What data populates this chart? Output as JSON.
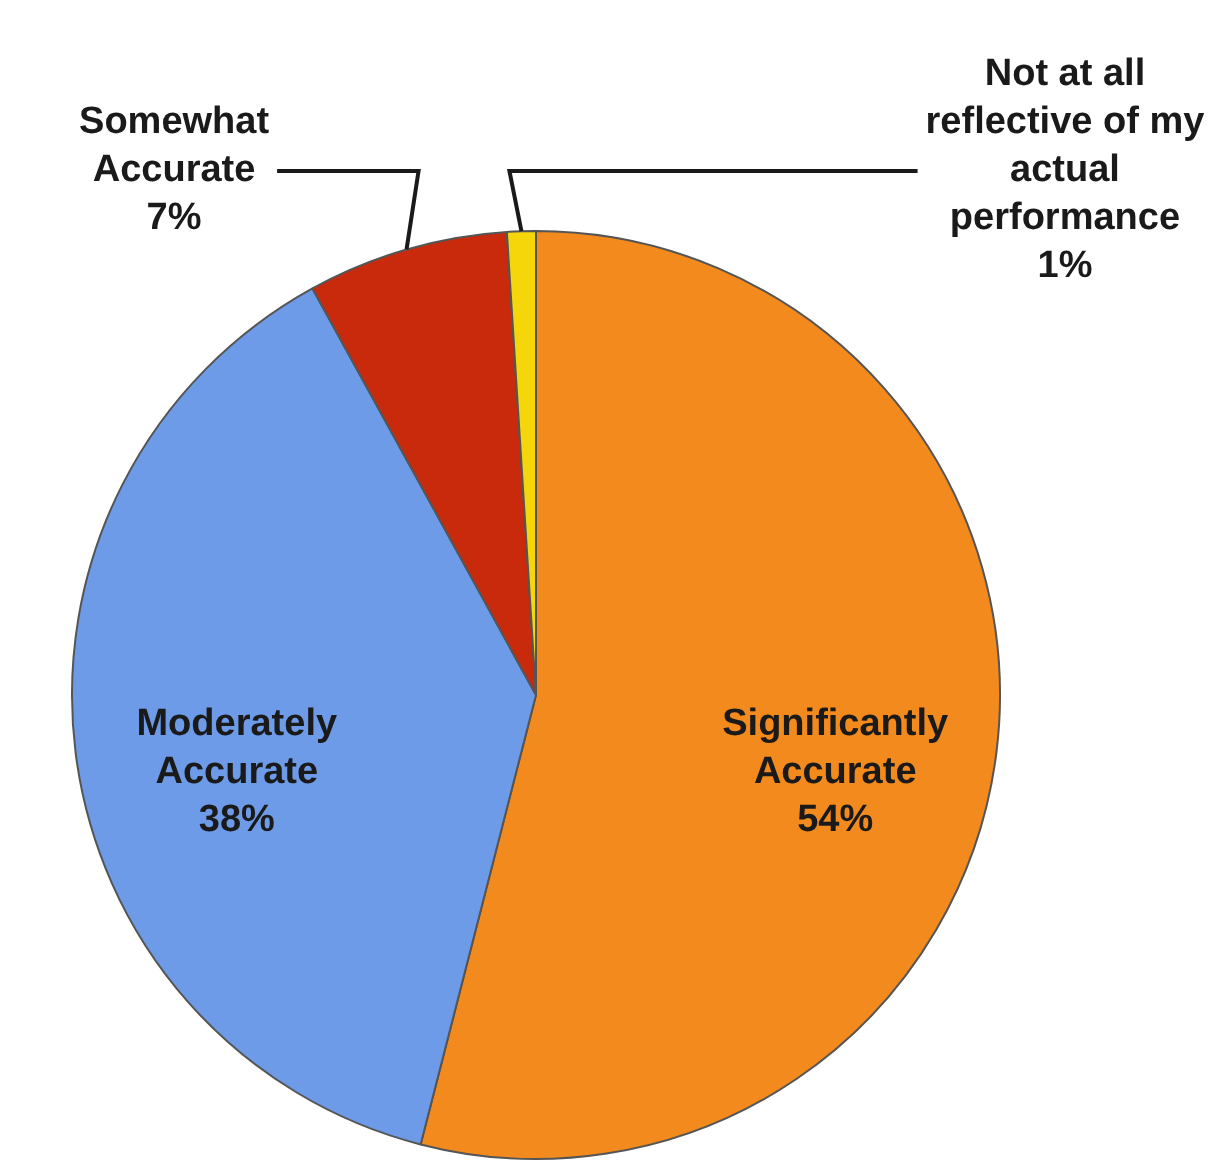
{
  "chart_data": {
    "type": "pie",
    "categories": [
      "Significantly Accurate",
      "Moderately Accurate",
      "Somewhat Accurate",
      "Not at all reflective of my actual performance"
    ],
    "values": [
      54,
      38,
      7,
      1
    ],
    "colors": [
      "#f28a1e",
      "#6d9be8",
      "#c92a0c",
      "#f5d60a"
    ],
    "value_labels": [
      "54%",
      "38%",
      "7%",
      "1%"
    ],
    "legend": false
  }
}
